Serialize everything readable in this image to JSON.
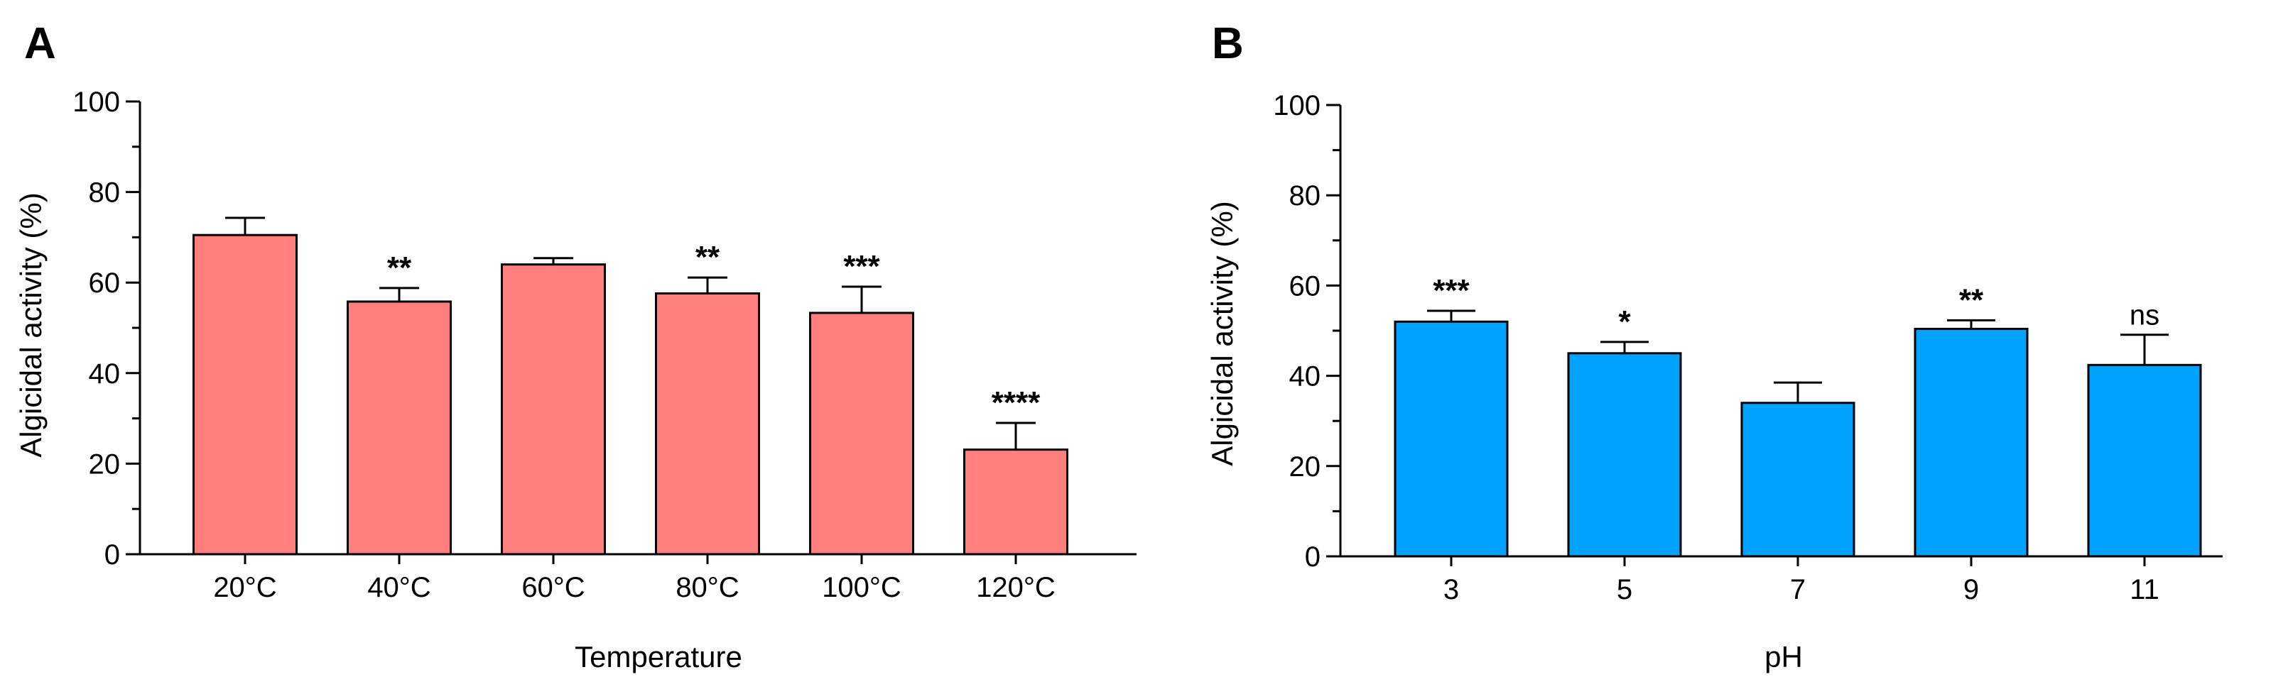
{
  "chart_data": [
    {
      "type": "bar",
      "panel_label": "A",
      "title": "",
      "xlabel": "Temperature",
      "ylabel": "Algicidal activity (%)",
      "ylim": [
        0,
        100
      ],
      "yticks": [
        "0",
        "20",
        "40",
        "60",
        "80",
        "100"
      ],
      "bar_color": "#FF7F7F",
      "categories": [
        "20°C",
        "40°C",
        "60°C",
        "80°C",
        "100°C",
        "120°C"
      ],
      "values": [
        70.5,
        55.8,
        64.0,
        57.6,
        53.3,
        23.1
      ],
      "errors": [
        3.8,
        3.0,
        1.4,
        3.5,
        5.8,
        5.9
      ],
      "significance": [
        "",
        "**",
        "",
        "**",
        "***",
        "****"
      ]
    },
    {
      "type": "bar",
      "panel_label": "B",
      "title": "",
      "xlabel": "pH",
      "ylabel": "Algicidal activity (%)",
      "ylim": [
        0,
        100
      ],
      "yticks": [
        "0",
        "20",
        "40",
        "60",
        "80",
        "100"
      ],
      "bar_color": "#00A2FF",
      "categories": [
        "3",
        "5",
        "7",
        "9",
        "11"
      ],
      "values": [
        52.0,
        45.0,
        34.0,
        50.4,
        42.4
      ],
      "errors": [
        2.4,
        2.5,
        4.5,
        1.9,
        6.7
      ],
      "significance": [
        "***",
        "*",
        "",
        "**",
        "ns"
      ]
    }
  ]
}
